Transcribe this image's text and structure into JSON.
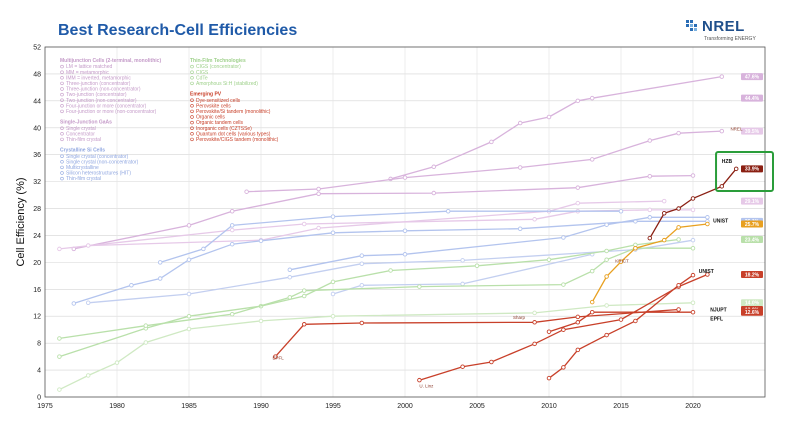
{
  "title": "Best Research-Cell Efficiencies",
  "logo": {
    "text": "NREL",
    "tagline": "Transforming ENERGY"
  },
  "chart_data": {
    "type": "line",
    "title": "Best Research-Cell Efficiencies",
    "xlabel": "",
    "ylabel": "Cell Efficiency (%)",
    "xlim": [
      1975,
      2025
    ],
    "ylim": [
      0,
      52
    ],
    "xticks": [
      1975,
      1980,
      1985,
      1990,
      1995,
      2000,
      2005,
      2010,
      2015,
      2020
    ],
    "yticks": [
      0,
      4,
      8,
      12,
      16,
      20,
      24,
      28,
      32,
      36,
      40,
      44,
      48,
      52
    ],
    "grid": true,
    "legend": {
      "groups": [
        {
          "heading": "Multijunction Cells (2-terminal, monolithic)",
          "color": "#c49ac8",
          "items": [
            "LM = lattice matched",
            "MM = metamorphic",
            "IMM = inverted, metamorphic",
            "Three-junction (concentrator)",
            "Three-junction (non-concentrator)",
            "Two-junction (concentrator)",
            "Two-junction (non-concentrator)",
            "Four-junction or more (concentrator)",
            "Four-junction or more (non-concentrator)"
          ]
        },
        {
          "heading": "Single-Junction GaAs",
          "color": "#c49ac8",
          "items": [
            "Single crystal",
            "Concentrator",
            "Thin-film crystal"
          ]
        },
        {
          "heading": "Crystalline Si Cells",
          "color": "#8fa6e0",
          "items": [
            "Single crystal (concentrator)",
            "Single crystal (non-concentrator)",
            "Multicrystalline",
            "Silicon heterostructures (HIT)",
            "Thin-film crystal"
          ]
        },
        {
          "heading": "Thin-Film Technologies",
          "color": "#9ed08a",
          "items": [
            "CIGS (concentrator)",
            "CIGS",
            "CdTe",
            "Amorphous Si:H (stabilized)"
          ]
        },
        {
          "heading": "Emerging PV",
          "color": "#c8402a",
          "items": [
            "Dye-sensitized cells",
            "Perovskite cells",
            "Perovskite/Si tandem (monolithic)",
            "Organic cells",
            "Organic tandem cells",
            "Inorganic cells (CZTSSe)",
            "Quantum dot cells (various types)",
            "Perovskite/CIGS tandem (monolithic)"
          ]
        }
      ]
    },
    "series": [
      {
        "name": "Three-junction (concentrator)",
        "color": "#d8b3dc",
        "points": [
          [
            1999,
            32.4
          ],
          [
            2002,
            34.2
          ],
          [
            2006,
            37.9
          ],
          [
            2008,
            40.7
          ],
          [
            2010,
            41.6
          ],
          [
            2012,
            44.0
          ],
          [
            2013,
            44.4
          ],
          [
            2022,
            47.6
          ]
        ]
      },
      {
        "name": "Two-junction (concentrator)",
        "color": "#d8b3dc",
        "points": [
          [
            1989,
            30.5
          ],
          [
            1994,
            30.9
          ],
          [
            2000,
            32.6
          ],
          [
            2008,
            34.1
          ],
          [
            2013,
            35.3
          ],
          [
            2017,
            38.1
          ],
          [
            2019,
            39.2
          ],
          [
            2022,
            39.5
          ]
        ]
      },
      {
        "name": "Two-junction (non-concentrator)",
        "color": "#d8b3dc",
        "points": [
          [
            1977,
            22
          ],
          [
            1985,
            25.5
          ],
          [
            1988,
            27.6
          ],
          [
            1994,
            30.2
          ],
          [
            2002,
            30.3
          ],
          [
            2012,
            31.1
          ],
          [
            2017,
            32.8
          ],
          [
            2020,
            32.9
          ]
        ]
      },
      {
        "name": "GaAs single crystal",
        "color": "#e6c9e8",
        "points": [
          [
            1976,
            22
          ],
          [
            1988,
            24.8
          ],
          [
            1993,
            25.7
          ],
          [
            2009,
            26.4
          ],
          [
            2012,
            27.6
          ],
          [
            2017,
            27.8
          ],
          [
            2020,
            27.8
          ]
        ]
      },
      {
        "name": "Thin-film crystal GaAs",
        "color": "#e6c9e8",
        "points": [
          [
            1978,
            22.5
          ],
          [
            1990,
            23.3
          ],
          [
            1994,
            25.1
          ],
          [
            2010,
            27.6
          ],
          [
            2012,
            28.8
          ],
          [
            2018,
            29.1
          ]
        ]
      },
      {
        "name": "Si single crystal (concentrator)",
        "color": "#b3c4ee",
        "points": [
          [
            1983,
            20
          ],
          [
            1986,
            22
          ],
          [
            1988,
            25.5
          ],
          [
            1995,
            26.8
          ],
          [
            2003,
            27.6
          ],
          [
            2015,
            27.6
          ]
        ]
      },
      {
        "name": "Si single crystal (non-concentrator)",
        "color": "#b3c4ee",
        "points": [
          [
            1977,
            13.9
          ],
          [
            1981,
            16.6
          ],
          [
            1983,
            17.6
          ],
          [
            1985,
            20.4
          ],
          [
            1988,
            22.7
          ],
          [
            1990,
            23.2
          ],
          [
            1995,
            24.4
          ],
          [
            2000,
            24.7
          ],
          [
            2008,
            25.0
          ],
          [
            2016,
            26.1
          ],
          [
            2021,
            26.1
          ]
        ]
      },
      {
        "name": "Silicon heterostructures (HIT)",
        "color": "#b3c4ee",
        "points": [
          [
            1992,
            18.9
          ],
          [
            1997,
            21
          ],
          [
            2000,
            21.2
          ],
          [
            2011,
            23.7
          ],
          [
            2014,
            25.6
          ],
          [
            2017,
            26.7
          ],
          [
            2021,
            26.7
          ]
        ]
      },
      {
        "name": "Multicrystalline Si",
        "color": "#c3cff0",
        "points": [
          [
            1978,
            14
          ],
          [
            1985,
            15.3
          ],
          [
            1992,
            17.8
          ],
          [
            1997,
            19.8
          ],
          [
            2004,
            20.3
          ],
          [
            2016,
            21.9
          ],
          [
            2020,
            23.3
          ]
        ]
      },
      {
        "name": "Thin-film crystal Si",
        "color": "#c3cff0",
        "points": [
          [
            1995,
            15.3
          ],
          [
            1997,
            16.6
          ],
          [
            2004,
            16.8
          ],
          [
            2013,
            21.2
          ]
        ]
      },
      {
        "name": "CIGS",
        "color": "#b9e0aa",
        "points": [
          [
            1976,
            6
          ],
          [
            1982,
            10.2
          ],
          [
            1985,
            12
          ],
          [
            1990,
            13.5
          ],
          [
            1993,
            15
          ],
          [
            1995,
            17.1
          ],
          [
            1999,
            18.8
          ],
          [
            2005,
            19.5
          ],
          [
            2010,
            20.4
          ],
          [
            2014,
            21.7
          ],
          [
            2016,
            22.6
          ],
          [
            2019,
            23.4
          ]
        ]
      },
      {
        "name": "CdTe",
        "color": "#b9e0aa",
        "points": [
          [
            1976,
            8.7
          ],
          [
            1982,
            10.6
          ],
          [
            1988,
            12.3
          ],
          [
            1992,
            14.8
          ],
          [
            1993,
            15.8
          ],
          [
            2001,
            16.4
          ],
          [
            2011,
            16.7
          ],
          [
            2013,
            18.7
          ],
          [
            2014,
            20.4
          ],
          [
            2016,
            22.1
          ],
          [
            2020,
            22.1
          ]
        ]
      },
      {
        "name": "Amorphous Si:H (stabilized)",
        "color": "#cfe9c3",
        "points": [
          [
            1976,
            1.1
          ],
          [
            1978,
            3.2
          ],
          [
            1980,
            5.1
          ],
          [
            1982,
            8.1
          ],
          [
            1985,
            10.1
          ],
          [
            1990,
            11.3
          ],
          [
            1995,
            12.0
          ],
          [
            2009,
            12.5
          ],
          [
            2014,
            13.6
          ],
          [
            2020,
            14.0
          ]
        ]
      },
      {
        "name": "Dye-sensitized cells",
        "color": "#c8402a",
        "points": [
          [
            1991,
            6
          ],
          [
            1993,
            10.8
          ],
          [
            1997,
            11
          ],
          [
            2009,
            11.1
          ],
          [
            2012,
            11.9
          ],
          [
            2019,
            13
          ]
        ]
      },
      {
        "name": "Perovskite cells",
        "color": "#e8a020",
        "points": [
          [
            2013,
            14.1
          ],
          [
            2014,
            17.9
          ],
          [
            2015,
            20.1
          ],
          [
            2016,
            22.1
          ],
          [
            2018,
            23.3
          ],
          [
            2019,
            25.2
          ],
          [
            2021,
            25.7
          ]
        ]
      },
      {
        "name": "Perovskite/Si tandem (monolithic)",
        "color": "#8a1f12",
        "points": [
          [
            2017,
            23.6
          ],
          [
            2018,
            27.3
          ],
          [
            2019,
            28.0
          ],
          [
            2020,
            29.5
          ],
          [
            2022,
            31.3
          ],
          [
            2023,
            33.9
          ]
        ]
      },
      {
        "name": "Organic cells",
        "color": "#c8402a",
        "points": [
          [
            2001,
            2.5
          ],
          [
            2004,
            4.5
          ],
          [
            2006,
            5.2
          ],
          [
            2009,
            7.9
          ],
          [
            2011,
            10.0
          ],
          [
            2015,
            11.5
          ],
          [
            2019,
            16.4
          ],
          [
            2021,
            18.2
          ]
        ]
      },
      {
        "name": "Inorganic cells (CZTSSe)",
        "color": "#c8402a",
        "points": [
          [
            2010,
            9.7
          ],
          [
            2012,
            11.1
          ],
          [
            2013,
            12.6
          ],
          [
            2020,
            12.6
          ]
        ]
      },
      {
        "name": "Quantum dot cells (various types)",
        "color": "#c8402a",
        "points": [
          [
            2010,
            2.8
          ],
          [
            2011,
            4.4
          ],
          [
            2012,
            7.0
          ],
          [
            2014,
            9.2
          ],
          [
            2016,
            11.3
          ],
          [
            2019,
            16.6
          ],
          [
            2020,
            18.1
          ]
        ]
      }
    ],
    "record_badges": [
      {
        "value": "47.6%",
        "y": 47.6,
        "color": "#d8b3dc"
      },
      {
        "value": "44.4%",
        "y": 44.4,
        "color": "#d8b3dc"
      },
      {
        "value": "39.5%",
        "y": 39.5,
        "color": "#e6c9e8"
      },
      {
        "value": "33.9%",
        "y": 33.9,
        "color": "#8a1f12"
      },
      {
        "value": "29.1%",
        "y": 29.1,
        "color": "#e6c9e8"
      },
      {
        "value": "26.1%",
        "y": 26.1,
        "color": "#b3c4ee"
      },
      {
        "value": "25.7%",
        "y": 25.7,
        "color": "#e8a020"
      },
      {
        "value": "23.4%",
        "y": 23.4,
        "color": "#b9e0aa"
      },
      {
        "value": "18.2%",
        "y": 18.2,
        "color": "#c8402a"
      },
      {
        "value": "14.0%",
        "y": 14.0,
        "color": "#cfe9c3"
      },
      {
        "value": "13.0%",
        "y": 13.0,
        "color": "#c8402a"
      },
      {
        "value": "12.6%",
        "y": 12.6,
        "color": "#c8402a"
      }
    ],
    "annotations": [
      {
        "text": "HZB",
        "x": 2022,
        "y": 34.8,
        "bold": true
      },
      {
        "text": "UNIST",
        "x": 2021.4,
        "y": 25.9,
        "bold": true
      },
      {
        "text": "UNIST",
        "x": 2020.4,
        "y": 18.4,
        "bold": true
      },
      {
        "text": "NJUPT",
        "x": 2021.2,
        "y": 12.7,
        "bold": true
      },
      {
        "text": "EPFL",
        "x": 2021.2,
        "y": 11.4,
        "bold": true
      },
      {
        "text": "KRICT",
        "x": 2014.6,
        "y": 20.0,
        "bold": false
      },
      {
        "text": "EPFL",
        "x": 1990.8,
        "y": 5.6,
        "bold": false
      },
      {
        "text": "U. Linz",
        "x": 2001,
        "y": 1.4,
        "bold": false
      },
      {
        "text": "Sharp",
        "x": 2007.5,
        "y": 11.6,
        "bold": false
      },
      {
        "text": "NREL",
        "x": 2022.6,
        "y": 39.6,
        "bold": false
      }
    ]
  }
}
